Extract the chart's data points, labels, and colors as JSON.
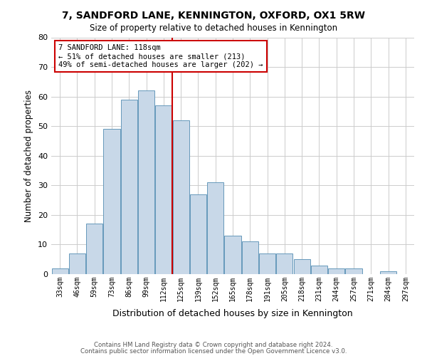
{
  "title": "7, SANDFORD LANE, KENNINGTON, OXFORD, OX1 5RW",
  "subtitle": "Size of property relative to detached houses in Kennington",
  "xlabel": "Distribution of detached houses by size in Kennington",
  "ylabel": "Number of detached properties",
  "bar_labels": [
    "33sqm",
    "46sqm",
    "59sqm",
    "73sqm",
    "86sqm",
    "99sqm",
    "112sqm",
    "125sqm",
    "139sqm",
    "152sqm",
    "165sqm",
    "178sqm",
    "191sqm",
    "205sqm",
    "218sqm",
    "231sqm",
    "244sqm",
    "257sqm",
    "271sqm",
    "284sqm",
    "297sqm"
  ],
  "bar_values": [
    2,
    7,
    17,
    49,
    59,
    62,
    57,
    52,
    27,
    31,
    13,
    11,
    7,
    7,
    5,
    3,
    2,
    2,
    0,
    1,
    0
  ],
  "bar_color": "#c8d8e8",
  "bar_edge_color": "#6699bb",
  "ylim": [
    0,
    80
  ],
  "yticks": [
    0,
    10,
    20,
    30,
    40,
    50,
    60,
    70,
    80
  ],
  "grid_color": "#cccccc",
  "vline_x_idx": 6,
  "vline_color": "#cc0000",
  "annotation_text": "7 SANDFORD LANE: 118sqm\n← 51% of detached houses are smaller (213)\n49% of semi-detached houses are larger (202) →",
  "annotation_box_edge": "#cc0000",
  "footer1": "Contains HM Land Registry data © Crown copyright and database right 2024.",
  "footer2": "Contains public sector information licensed under the Open Government Licence v3.0.",
  "bg_color": "#ffffff",
  "plot_bg_color": "#ffffff"
}
